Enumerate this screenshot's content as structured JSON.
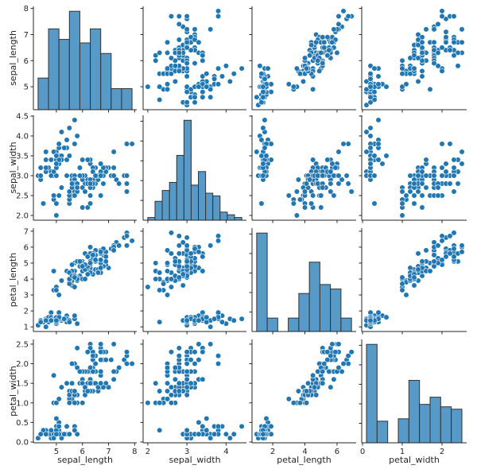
{
  "chart_data": {
    "type": "pairplot",
    "diagonal_type": "histogram",
    "offdiagonal_type": "scatter",
    "grid": false,
    "colors": {
      "points": "#1f77b4",
      "point_edge": "#ffffff",
      "bars": "#5799c7",
      "bar_edge": "#333333"
    },
    "variables": [
      "sepal_length",
      "sepal_width",
      "petal_length",
      "petal_width"
    ],
    "axis_ranges": {
      "sepal_length": [
        4.12,
        8.08
      ],
      "sepal_width": [
        1.88,
        4.52
      ],
      "petal_length": [
        0.71,
        7.19
      ],
      "petal_width": [
        -0.02,
        2.62
      ]
    },
    "tick_labels": {
      "sepal_length": [
        "5",
        "6",
        "7",
        "8"
      ],
      "sepal_width_y": [
        "2.0",
        "2.5",
        "3.0",
        "3.5",
        "4.0",
        "4.5"
      ],
      "sepal_width_x": [
        "2",
        "3",
        "4"
      ],
      "petal_length_y": [
        "1",
        "2",
        "3",
        "4",
        "5",
        "6",
        "7"
      ],
      "petal_length_x": [
        "2",
        "4",
        "6"
      ],
      "petal_width_y": [
        "0.0",
        "0.5",
        "1.0",
        "1.5",
        "2.0",
        "2.5"
      ],
      "petal_width_x": [
        "0",
        "1",
        "2"
      ]
    },
    "histogram_bins": {
      "sepal_length": 9,
      "sepal_width": 13,
      "petal_length": 9,
      "petal_width": 9
    },
    "rows": [
      [
        5.1,
        3.5,
        1.4,
        0.2
      ],
      [
        4.9,
        3.0,
        1.4,
        0.2
      ],
      [
        4.7,
        3.2,
        1.3,
        0.2
      ],
      [
        4.6,
        3.1,
        1.5,
        0.2
      ],
      [
        5.0,
        3.6,
        1.4,
        0.2
      ],
      [
        5.4,
        3.9,
        1.7,
        0.4
      ],
      [
        4.6,
        3.4,
        1.4,
        0.3
      ],
      [
        5.0,
        3.4,
        1.5,
        0.2
      ],
      [
        4.4,
        2.9,
        1.4,
        0.2
      ],
      [
        4.9,
        3.1,
        1.5,
        0.1
      ],
      [
        5.4,
        3.7,
        1.5,
        0.2
      ],
      [
        4.8,
        3.4,
        1.6,
        0.2
      ],
      [
        4.8,
        3.0,
        1.4,
        0.1
      ],
      [
        4.3,
        3.0,
        1.1,
        0.1
      ],
      [
        5.8,
        4.0,
        1.2,
        0.2
      ],
      [
        5.7,
        4.4,
        1.5,
        0.4
      ],
      [
        5.4,
        3.9,
        1.3,
        0.4
      ],
      [
        5.1,
        3.5,
        1.4,
        0.3
      ],
      [
        5.7,
        3.8,
        1.7,
        0.3
      ],
      [
        5.1,
        3.8,
        1.5,
        0.3
      ],
      [
        5.4,
        3.4,
        1.7,
        0.2
      ],
      [
        5.1,
        3.7,
        1.5,
        0.4
      ],
      [
        4.6,
        3.6,
        1.0,
        0.2
      ],
      [
        5.1,
        3.3,
        1.7,
        0.5
      ],
      [
        4.8,
        3.4,
        1.9,
        0.2
      ],
      [
        5.0,
        3.0,
        1.6,
        0.2
      ],
      [
        5.0,
        3.4,
        1.6,
        0.4
      ],
      [
        5.2,
        3.5,
        1.5,
        0.2
      ],
      [
        5.2,
        3.4,
        1.4,
        0.2
      ],
      [
        4.7,
        3.2,
        1.6,
        0.2
      ],
      [
        4.8,
        3.1,
        1.6,
        0.2
      ],
      [
        5.4,
        3.4,
        1.5,
        0.4
      ],
      [
        5.2,
        4.1,
        1.5,
        0.1
      ],
      [
        5.5,
        4.2,
        1.4,
        0.2
      ],
      [
        4.9,
        3.1,
        1.5,
        0.2
      ],
      [
        5.0,
        3.2,
        1.2,
        0.2
      ],
      [
        5.5,
        3.5,
        1.3,
        0.2
      ],
      [
        4.9,
        3.6,
        1.4,
        0.1
      ],
      [
        4.4,
        3.0,
        1.3,
        0.2
      ],
      [
        5.1,
        3.4,
        1.5,
        0.2
      ],
      [
        5.0,
        3.5,
        1.3,
        0.3
      ],
      [
        4.5,
        2.3,
        1.3,
        0.3
      ],
      [
        4.4,
        3.2,
        1.3,
        0.2
      ],
      [
        5.0,
        3.5,
        1.6,
        0.6
      ],
      [
        5.1,
        3.8,
        1.9,
        0.4
      ],
      [
        4.8,
        3.0,
        1.4,
        0.3
      ],
      [
        5.1,
        3.8,
        1.6,
        0.2
      ],
      [
        4.6,
        3.2,
        1.4,
        0.2
      ],
      [
        5.3,
        3.7,
        1.5,
        0.2
      ],
      [
        5.0,
        3.3,
        1.4,
        0.2
      ],
      [
        7.0,
        3.2,
        4.7,
        1.4
      ],
      [
        6.4,
        3.2,
        4.5,
        1.5
      ],
      [
        6.9,
        3.1,
        4.9,
        1.5
      ],
      [
        5.5,
        2.3,
        4.0,
        1.3
      ],
      [
        6.5,
        2.8,
        4.6,
        1.5
      ],
      [
        5.7,
        2.8,
        4.5,
        1.3
      ],
      [
        6.3,
        3.3,
        4.7,
        1.6
      ],
      [
        4.9,
        2.4,
        3.3,
        1.0
      ],
      [
        6.6,
        2.9,
        4.6,
        1.3
      ],
      [
        5.2,
        2.7,
        3.9,
        1.4
      ],
      [
        5.0,
        2.0,
        3.5,
        1.0
      ],
      [
        5.9,
        3.0,
        4.2,
        1.5
      ],
      [
        6.0,
        2.2,
        4.0,
        1.0
      ],
      [
        6.1,
        2.9,
        4.7,
        1.4
      ],
      [
        5.6,
        2.9,
        3.6,
        1.3
      ],
      [
        6.7,
        3.1,
        4.4,
        1.4
      ],
      [
        5.6,
        3.0,
        4.5,
        1.5
      ],
      [
        5.8,
        2.7,
        4.1,
        1.0
      ],
      [
        6.2,
        2.2,
        4.5,
        1.5
      ],
      [
        5.6,
        2.5,
        3.9,
        1.1
      ],
      [
        5.9,
        3.2,
        4.8,
        1.8
      ],
      [
        6.1,
        2.8,
        4.0,
        1.3
      ],
      [
        6.3,
        2.5,
        4.9,
        1.5
      ],
      [
        6.1,
        2.8,
        4.7,
        1.2
      ],
      [
        6.4,
        2.9,
        4.3,
        1.3
      ],
      [
        6.6,
        3.0,
        4.4,
        1.4
      ],
      [
        6.8,
        2.8,
        4.8,
        1.4
      ],
      [
        6.7,
        3.0,
        5.0,
        1.7
      ],
      [
        6.0,
        2.9,
        4.5,
        1.5
      ],
      [
        5.7,
        2.6,
        3.5,
        1.0
      ],
      [
        5.5,
        2.4,
        3.8,
        1.1
      ],
      [
        5.5,
        2.4,
        3.7,
        1.0
      ],
      [
        5.8,
        2.7,
        3.9,
        1.2
      ],
      [
        6.0,
        2.7,
        5.1,
        1.6
      ],
      [
        5.4,
        3.0,
        4.5,
        1.5
      ],
      [
        6.0,
        3.4,
        4.5,
        1.6
      ],
      [
        6.7,
        3.1,
        4.7,
        1.5
      ],
      [
        6.3,
        2.3,
        4.4,
        1.3
      ],
      [
        5.6,
        3.0,
        4.1,
        1.3
      ],
      [
        5.5,
        2.5,
        4.0,
        1.3
      ],
      [
        5.5,
        2.6,
        4.4,
        1.2
      ],
      [
        6.1,
        3.0,
        4.6,
        1.4
      ],
      [
        5.8,
        2.6,
        4.0,
        1.2
      ],
      [
        5.0,
        2.3,
        3.3,
        1.0
      ],
      [
        5.6,
        2.7,
        4.2,
        1.3
      ],
      [
        5.7,
        3.0,
        4.2,
        1.2
      ],
      [
        5.7,
        2.9,
        4.2,
        1.3
      ],
      [
        6.2,
        2.9,
        4.3,
        1.3
      ],
      [
        5.1,
        2.5,
        3.0,
        1.1
      ],
      [
        5.7,
        2.8,
        4.1,
        1.3
      ],
      [
        6.3,
        3.3,
        6.0,
        2.5
      ],
      [
        5.8,
        2.7,
        5.1,
        1.9
      ],
      [
        7.1,
        3.0,
        5.9,
        2.1
      ],
      [
        6.3,
        2.9,
        5.6,
        1.8
      ],
      [
        6.5,
        3.0,
        5.8,
        2.2
      ],
      [
        7.6,
        3.0,
        6.6,
        2.1
      ],
      [
        4.9,
        2.5,
        4.5,
        1.7
      ],
      [
        7.3,
        2.9,
        6.3,
        1.8
      ],
      [
        6.7,
        2.5,
        5.8,
        1.8
      ],
      [
        7.2,
        3.6,
        6.1,
        2.5
      ],
      [
        6.5,
        3.2,
        5.1,
        2.0
      ],
      [
        6.4,
        2.7,
        5.3,
        1.9
      ],
      [
        6.8,
        3.0,
        5.5,
        2.1
      ],
      [
        5.7,
        2.5,
        5.0,
        2.0
      ],
      [
        5.8,
        2.8,
        5.1,
        2.4
      ],
      [
        6.4,
        3.2,
        5.3,
        2.3
      ],
      [
        6.5,
        3.0,
        5.5,
        1.8
      ],
      [
        7.7,
        3.8,
        6.7,
        2.2
      ],
      [
        7.7,
        2.6,
        6.9,
        2.3
      ],
      [
        6.0,
        2.2,
        5.0,
        1.5
      ],
      [
        6.9,
        3.2,
        5.7,
        2.3
      ],
      [
        5.6,
        2.8,
        4.9,
        2.0
      ],
      [
        7.7,
        2.8,
        6.7,
        2.0
      ],
      [
        6.3,
        2.7,
        4.9,
        1.8
      ],
      [
        6.7,
        3.3,
        5.7,
        2.1
      ],
      [
        7.2,
        3.2,
        6.0,
        1.8
      ],
      [
        6.2,
        2.8,
        4.8,
        1.8
      ],
      [
        6.1,
        3.0,
        4.9,
        1.8
      ],
      [
        6.4,
        2.8,
        5.6,
        2.1
      ],
      [
        7.2,
        3.0,
        5.8,
        1.6
      ],
      [
        7.4,
        2.8,
        6.1,
        1.9
      ],
      [
        7.9,
        3.8,
        6.4,
        2.0
      ],
      [
        6.4,
        2.8,
        5.6,
        2.2
      ],
      [
        6.3,
        2.8,
        5.1,
        1.5
      ],
      [
        6.1,
        2.6,
        5.6,
        1.4
      ],
      [
        7.7,
        3.0,
        6.1,
        2.3
      ],
      [
        6.3,
        3.4,
        5.6,
        2.4
      ],
      [
        6.4,
        3.1,
        5.5,
        1.8
      ],
      [
        6.0,
        3.0,
        4.8,
        1.8
      ],
      [
        6.9,
        3.1,
        5.4,
        2.1
      ],
      [
        6.7,
        3.1,
        5.6,
        2.4
      ],
      [
        6.9,
        3.1,
        5.1,
        2.3
      ],
      [
        5.8,
        2.7,
        5.1,
        1.9
      ],
      [
        6.8,
        3.2,
        5.9,
        2.3
      ],
      [
        6.7,
        3.3,
        5.7,
        2.5
      ],
      [
        6.7,
        3.0,
        5.2,
        2.3
      ],
      [
        6.3,
        2.5,
        5.0,
        1.9
      ],
      [
        6.5,
        3.0,
        5.2,
        2.0
      ],
      [
        6.2,
        3.4,
        5.4,
        2.3
      ],
      [
        5.9,
        3.0,
        5.1,
        1.8
      ]
    ]
  }
}
